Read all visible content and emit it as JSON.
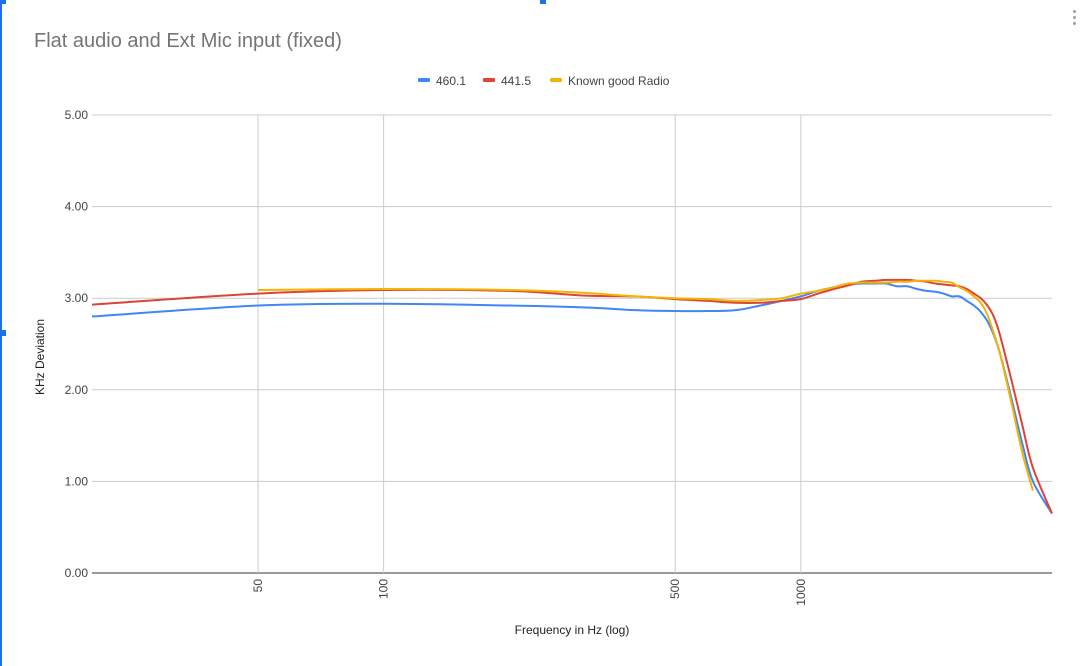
{
  "chart_data": {
    "type": "line",
    "title": "Flat audio and Ext Mic input (fixed)",
    "xlabel": "Frequency in Hz (log)",
    "ylabel": "KHz Deviation",
    "x_scale": "log",
    "xlim": [
      20,
      4000
    ],
    "ylim": [
      0,
      5
    ],
    "y_ticks": [
      "0.00",
      "1.00",
      "2.00",
      "3.00",
      "4.00",
      "5.00"
    ],
    "x_ticks": [
      50,
      100,
      500,
      1000
    ],
    "grid": true,
    "legend_position": "top",
    "series": [
      {
        "name": "460.1",
        "color": "#4285f4",
        "points": [
          [
            20,
            2.8
          ],
          [
            50,
            2.92
          ],
          [
            100,
            2.94
          ],
          [
            200,
            2.92
          ],
          [
            300,
            2.9
          ],
          [
            400,
            2.87
          ],
          [
            500,
            2.86
          ],
          [
            600,
            2.86
          ],
          [
            700,
            2.87
          ],
          [
            800,
            2.92
          ],
          [
            900,
            2.97
          ],
          [
            1000,
            3.02
          ],
          [
            1100,
            3.08
          ],
          [
            1200,
            3.12
          ],
          [
            1300,
            3.15
          ],
          [
            1400,
            3.16
          ],
          [
            1500,
            3.16
          ],
          [
            1600,
            3.16
          ],
          [
            1700,
            3.13
          ],
          [
            1800,
            3.13
          ],
          [
            1900,
            3.1
          ],
          [
            2000,
            3.08
          ],
          [
            2100,
            3.07
          ],
          [
            2200,
            3.05
          ],
          [
            2300,
            3.02
          ],
          [
            2400,
            3.02
          ],
          [
            2500,
            2.97
          ],
          [
            2600,
            2.92
          ],
          [
            2700,
            2.85
          ],
          [
            2800,
            2.75
          ],
          [
            2900,
            2.6
          ],
          [
            3000,
            2.4
          ],
          [
            3200,
            1.9
          ],
          [
            3400,
            1.4
          ],
          [
            3600,
            1.0
          ],
          [
            4000,
            0.65
          ]
        ]
      },
      {
        "name": "441.5",
        "color": "#db4437",
        "points": [
          [
            20,
            2.93
          ],
          [
            50,
            3.05
          ],
          [
            100,
            3.09
          ],
          [
            200,
            3.08
          ],
          [
            300,
            3.03
          ],
          [
            400,
            3.02
          ],
          [
            500,
            2.99
          ],
          [
            600,
            2.97
          ],
          [
            700,
            2.95
          ],
          [
            800,
            2.95
          ],
          [
            900,
            2.97
          ],
          [
            1000,
            2.99
          ],
          [
            1100,
            3.05
          ],
          [
            1200,
            3.1
          ],
          [
            1300,
            3.14
          ],
          [
            1400,
            3.18
          ],
          [
            1500,
            3.19
          ],
          [
            1600,
            3.2
          ],
          [
            1700,
            3.2
          ],
          [
            1800,
            3.2
          ],
          [
            1900,
            3.19
          ],
          [
            2000,
            3.18
          ],
          [
            2100,
            3.16
          ],
          [
            2200,
            3.15
          ],
          [
            2300,
            3.14
          ],
          [
            2400,
            3.13
          ],
          [
            2500,
            3.1
          ],
          [
            2600,
            3.05
          ],
          [
            2700,
            3.0
          ],
          [
            2800,
            2.92
          ],
          [
            2900,
            2.8
          ],
          [
            3000,
            2.6
          ],
          [
            3200,
            2.1
          ],
          [
            3400,
            1.6
          ],
          [
            3600,
            1.15
          ],
          [
            4000,
            0.65
          ]
        ]
      },
      {
        "name": "Known good Radio",
        "color": "#f4b400",
        "points": [
          [
            50,
            3.09
          ],
          [
            100,
            3.1
          ],
          [
            200,
            3.09
          ],
          [
            300,
            3.06
          ],
          [
            400,
            3.02
          ],
          [
            500,
            3.0
          ],
          [
            600,
            2.99
          ],
          [
            700,
            2.97
          ],
          [
            800,
            2.98
          ],
          [
            900,
            3.0
          ],
          [
            1000,
            3.05
          ],
          [
            1100,
            3.08
          ],
          [
            1200,
            3.12
          ],
          [
            1300,
            3.16
          ],
          [
            1400,
            3.17
          ],
          [
            1500,
            3.17
          ],
          [
            1600,
            3.17
          ],
          [
            1700,
            3.18
          ],
          [
            1800,
            3.18
          ],
          [
            1900,
            3.19
          ],
          [
            2000,
            3.19
          ],
          [
            2100,
            3.19
          ],
          [
            2200,
            3.18
          ],
          [
            2300,
            3.17
          ],
          [
            2400,
            3.12
          ],
          [
            2500,
            3.08
          ],
          [
            2600,
            3.02
          ],
          [
            2700,
            2.95
          ],
          [
            2800,
            2.82
          ],
          [
            2900,
            2.62
          ],
          [
            3000,
            2.4
          ],
          [
            3200,
            1.85
          ],
          [
            3400,
            1.3
          ],
          [
            3600,
            0.9
          ]
        ]
      }
    ]
  }
}
